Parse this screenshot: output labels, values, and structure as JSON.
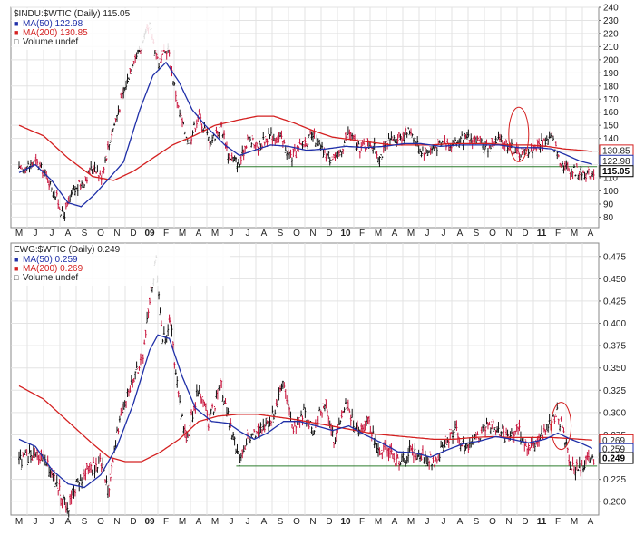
{
  "chart_data": [
    {
      "type": "line",
      "subtype": "candlestick-ratio",
      "title": "$INDU:$WTIC (Daily) 115.05",
      "legend": [
        {
          "symbol": "■",
          "label": "MA(50) 122.98",
          "color": "#1f2fa8"
        },
        {
          "symbol": "■",
          "label": "MA(200) 130.85",
          "color": "#d42020"
        },
        {
          "symbol": "□",
          "label": "Volume undef",
          "color": "#333333"
        }
      ],
      "xlabels": [
        "M",
        "J",
        "J",
        "A",
        "S",
        "O",
        "N",
        "D",
        "09",
        "F",
        "M",
        "A",
        "M",
        "J",
        "J",
        "A",
        "S",
        "O",
        "N",
        "D",
        "10",
        "F",
        "M",
        "A",
        "M",
        "J",
        "J",
        "A",
        "S",
        "O",
        "N",
        "D",
        "11",
        "F",
        "M",
        "A"
      ],
      "yticks": [
        "240",
        "230",
        "220",
        "210",
        "200",
        "190",
        "180",
        "170",
        "160",
        "150",
        "140",
        "130",
        "120",
        "110",
        "100",
        "90",
        "80"
      ],
      "ylim": [
        72,
        240
      ],
      "support_line": 118.5,
      "last_labels": [
        {
          "text": "130.85",
          "value": 130.85
        },
        {
          "text": "122.98",
          "value": 122.98
        },
        {
          "text": "115.05",
          "value": 115.05
        }
      ],
      "price_path": [
        [
          0,
          115
        ],
        [
          1,
          122
        ],
        [
          1.6,
          113
        ],
        [
          2.3,
          95
        ],
        [
          2.7,
          80
        ],
        [
          3.3,
          98
        ],
        [
          4,
          108
        ],
        [
          4.6,
          120
        ],
        [
          5,
          110
        ],
        [
          5.7,
          145
        ],
        [
          6.4,
          175
        ],
        [
          7,
          200
        ],
        [
          7.5,
          210
        ],
        [
          8,
          225
        ],
        [
          8.6,
          195
        ],
        [
          9.1,
          210
        ],
        [
          9.8,
          160
        ],
        [
          10.4,
          137
        ],
        [
          11,
          158
        ],
        [
          11.7,
          137
        ],
        [
          12.4,
          150
        ],
        [
          12.8,
          128
        ],
        [
          13.5,
          120
        ],
        [
          14,
          140
        ],
        [
          14.6,
          133
        ],
        [
          15.3,
          142
        ],
        [
          16,
          140
        ],
        [
          16.7,
          125
        ],
        [
          17.4,
          136
        ],
        [
          18,
          142
        ],
        [
          18.7,
          128
        ],
        [
          19.5,
          125
        ],
        [
          20.2,
          145
        ],
        [
          20.8,
          132
        ],
        [
          21.5,
          137
        ],
        [
          22.1,
          126
        ],
        [
          22.7,
          138
        ],
        [
          23.4,
          142
        ],
        [
          24,
          146
        ],
        [
          24.6,
          130
        ],
        [
          25.3,
          132
        ],
        [
          26,
          137
        ],
        [
          26.6,
          136
        ],
        [
          27.3,
          140
        ],
        [
          28,
          139
        ],
        [
          28.6,
          132
        ],
        [
          29.3,
          139
        ],
        [
          30,
          135
        ],
        [
          30.6,
          128
        ],
        [
          31.3,
          131
        ],
        [
          32,
          137
        ],
        [
          32.6,
          141
        ],
        [
          33.2,
          122
        ],
        [
          33.7,
          116
        ],
        [
          34.3,
          115
        ],
        [
          34.8,
          113
        ],
        [
          35.2,
          115
        ]
      ],
      "ma50_path": [
        [
          0,
          114
        ],
        [
          1,
          120
        ],
        [
          2,
          108
        ],
        [
          3,
          91
        ],
        [
          3.8,
          88
        ],
        [
          4.6,
          97
        ],
        [
          5.4,
          108
        ],
        [
          6.4,
          122
        ],
        [
          7.4,
          162
        ],
        [
          8.2,
          188
        ],
        [
          9,
          198
        ],
        [
          9.8,
          183
        ],
        [
          10.6,
          162
        ],
        [
          11.4,
          150
        ],
        [
          12.6,
          135
        ],
        [
          13.5,
          127
        ],
        [
          14.4,
          131
        ],
        [
          15.4,
          135
        ],
        [
          16.5,
          134
        ],
        [
          17.6,
          131
        ],
        [
          18.8,
          132
        ],
        [
          20,
          134
        ],
        [
          21.2,
          133
        ],
        [
          22.4,
          134
        ],
        [
          23.6,
          136
        ],
        [
          24.6,
          136
        ],
        [
          25.8,
          134
        ],
        [
          27,
          135
        ],
        [
          28.2,
          135
        ],
        [
          29.4,
          135
        ],
        [
          30.6,
          133
        ],
        [
          31.8,
          133
        ],
        [
          32.6,
          132
        ],
        [
          33.4,
          128
        ],
        [
          34.3,
          123
        ],
        [
          35.2,
          120
        ]
      ],
      "ma200_path": [
        [
          0,
          150
        ],
        [
          1.5,
          142
        ],
        [
          3,
          125
        ],
        [
          4.5,
          111
        ],
        [
          5.8,
          108
        ],
        [
          7,
          115
        ],
        [
          8.2,
          125
        ],
        [
          9.4,
          135
        ],
        [
          10.7,
          142
        ],
        [
          12,
          150
        ],
        [
          13.4,
          154
        ],
        [
          14.6,
          157
        ],
        [
          15.6,
          157
        ],
        [
          16.8,
          152
        ],
        [
          18,
          146
        ],
        [
          19.2,
          141
        ],
        [
          20.4,
          139
        ],
        [
          21.6,
          137
        ],
        [
          22.8,
          135
        ],
        [
          24,
          135
        ],
        [
          25.2,
          135
        ],
        [
          26.4,
          136
        ],
        [
          27.6,
          136
        ],
        [
          28.8,
          136
        ],
        [
          30,
          135
        ],
        [
          31.2,
          135
        ],
        [
          32.3,
          134
        ],
        [
          33.4,
          132
        ],
        [
          34.4,
          131
        ],
        [
          35.2,
          130
        ]
      ],
      "annotations": [
        {
          "shape": "ellipse",
          "x": 30.6,
          "y": 143
        }
      ]
    },
    {
      "type": "line",
      "subtype": "candlestick-ratio",
      "title": "EWG:$WTIC (Daily) 0.249",
      "legend": [
        {
          "symbol": "■",
          "label": "MA(50) 0.259",
          "color": "#1f2fa8"
        },
        {
          "symbol": "■",
          "label": "MA(200) 0.269",
          "color": "#d42020"
        },
        {
          "symbol": "□",
          "label": "Volume undef",
          "color": "#333333"
        }
      ],
      "xlabels": [
        "M",
        "J",
        "J",
        "A",
        "S",
        "O",
        "N",
        "D",
        "09",
        "F",
        "M",
        "A",
        "M",
        "J",
        "J",
        "A",
        "S",
        "O",
        "N",
        "D",
        "10",
        "F",
        "M",
        "A",
        "M",
        "J",
        "J",
        "A",
        "S",
        "O",
        "N",
        "D",
        "11",
        "F",
        "M",
        "A"
      ],
      "yticks": [
        "0.475",
        "0.450",
        "0.425",
        "0.400",
        "0.375",
        "0.350",
        "0.325",
        "0.300",
        "0.275",
        "0.250",
        "0.225",
        "0.200"
      ],
      "ylim": [
        0.185,
        0.49
      ],
      "support_line": 0.24,
      "last_labels": [
        {
          "text": "0.269",
          "value": 0.269
        },
        {
          "text": "0.259",
          "value": 0.259
        },
        {
          "text": "0.249",
          "value": 0.249
        }
      ],
      "price_path": [
        [
          0,
          0.245
        ],
        [
          1,
          0.255
        ],
        [
          2,
          0.235
        ],
        [
          2.6,
          0.205
        ],
        [
          3,
          0.192
        ],
        [
          3.5,
          0.22
        ],
        [
          4.2,
          0.235
        ],
        [
          5,
          0.245
        ],
        [
          5.5,
          0.21
        ],
        [
          6,
          0.28
        ],
        [
          6.8,
          0.33
        ],
        [
          7.6,
          0.36
        ],
        [
          8,
          0.43
        ],
        [
          8.4,
          0.47
        ],
        [
          8.8,
          0.38
        ],
        [
          9.3,
          0.4
        ],
        [
          9.8,
          0.31
        ],
        [
          10.3,
          0.27
        ],
        [
          11,
          0.33
        ],
        [
          11.6,
          0.29
        ],
        [
          12.4,
          0.33
        ],
        [
          13,
          0.28
        ],
        [
          13.5,
          0.245
        ],
        [
          14,
          0.27
        ],
        [
          14.7,
          0.28
        ],
        [
          15.4,
          0.29
        ],
        [
          16.2,
          0.33
        ],
        [
          16.8,
          0.285
        ],
        [
          17.4,
          0.3
        ],
        [
          18,
          0.28
        ],
        [
          18.7,
          0.31
        ],
        [
          19.3,
          0.27
        ],
        [
          20,
          0.31
        ],
        [
          20.7,
          0.28
        ],
        [
          21.4,
          0.29
        ],
        [
          22,
          0.255
        ],
        [
          22.6,
          0.26
        ],
        [
          23.3,
          0.24
        ],
        [
          24,
          0.26
        ],
        [
          24.6,
          0.25
        ],
        [
          25.4,
          0.245
        ],
        [
          26,
          0.26
        ],
        [
          26.7,
          0.28
        ],
        [
          27.3,
          0.26
        ],
        [
          28,
          0.27
        ],
        [
          28.7,
          0.29
        ],
        [
          29.3,
          0.28
        ],
        [
          30,
          0.27
        ],
        [
          30.6,
          0.28
        ],
        [
          31.2,
          0.26
        ],
        [
          31.8,
          0.27
        ],
        [
          32.6,
          0.29
        ],
        [
          33,
          0.3
        ],
        [
          33.4,
          0.27
        ],
        [
          33.8,
          0.24
        ],
        [
          34.3,
          0.237
        ],
        [
          34.8,
          0.245
        ],
        [
          35.2,
          0.249
        ]
      ],
      "ma50_path": [
        [
          0,
          0.27
        ],
        [
          1,
          0.262
        ],
        [
          2,
          0.236
        ],
        [
          3,
          0.22
        ],
        [
          4,
          0.216
        ],
        [
          5,
          0.23
        ],
        [
          6,
          0.262
        ],
        [
          7,
          0.31
        ],
        [
          8,
          0.37
        ],
        [
          8.5,
          0.387
        ],
        [
          9.2,
          0.383
        ],
        [
          10,
          0.34
        ],
        [
          10.8,
          0.305
        ],
        [
          11.8,
          0.29
        ],
        [
          12.8,
          0.288
        ],
        [
          13.6,
          0.278
        ],
        [
          14.4,
          0.27
        ],
        [
          15.2,
          0.277
        ],
        [
          16.2,
          0.29
        ],
        [
          17.2,
          0.29
        ],
        [
          18.2,
          0.285
        ],
        [
          19.2,
          0.28
        ],
        [
          20.2,
          0.285
        ],
        [
          21.2,
          0.275
        ],
        [
          22.2,
          0.266
        ],
        [
          23.2,
          0.256
        ],
        [
          24.2,
          0.255
        ],
        [
          25.2,
          0.25
        ],
        [
          26.2,
          0.258
        ],
        [
          27.2,
          0.265
        ],
        [
          28.2,
          0.268
        ],
        [
          29.2,
          0.273
        ],
        [
          30.2,
          0.27
        ],
        [
          31.2,
          0.266
        ],
        [
          32.2,
          0.27
        ],
        [
          33,
          0.277
        ],
        [
          33.8,
          0.27
        ],
        [
          34.5,
          0.265
        ],
        [
          35.2,
          0.259
        ]
      ],
      "ma200_path": [
        [
          0,
          0.33
        ],
        [
          1.5,
          0.315
        ],
        [
          3,
          0.29
        ],
        [
          4.5,
          0.265
        ],
        [
          5.5,
          0.25
        ],
        [
          6.5,
          0.245
        ],
        [
          7.5,
          0.245
        ],
        [
          8.6,
          0.255
        ],
        [
          9.8,
          0.27
        ],
        [
          11,
          0.29
        ],
        [
          12.2,
          0.296
        ],
        [
          13.4,
          0.298
        ],
        [
          14.6,
          0.298
        ],
        [
          15.8,
          0.295
        ],
        [
          17,
          0.292
        ],
        [
          18.2,
          0.288
        ],
        [
          19.4,
          0.284
        ],
        [
          20.6,
          0.28
        ],
        [
          21.8,
          0.276
        ],
        [
          23,
          0.274
        ],
        [
          24.2,
          0.272
        ],
        [
          25.4,
          0.27
        ],
        [
          26.6,
          0.27
        ],
        [
          27.8,
          0.272
        ],
        [
          29,
          0.273
        ],
        [
          30.2,
          0.272
        ],
        [
          31.4,
          0.272
        ],
        [
          32.6,
          0.272
        ],
        [
          33.6,
          0.271
        ],
        [
          34.4,
          0.27
        ],
        [
          35.2,
          0.269
        ]
      ],
      "annotations": [
        {
          "shape": "ellipse",
          "x": 33.2,
          "y": 0.285
        }
      ]
    }
  ]
}
